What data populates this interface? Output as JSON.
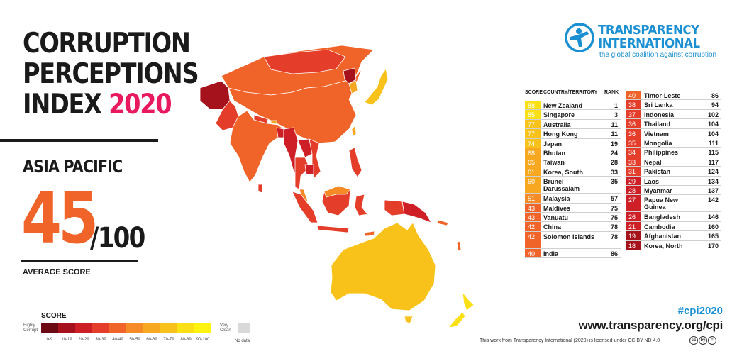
{
  "title": {
    "line1": "CORRUPTION",
    "line2": "PERCEPTIONS",
    "line3a": "INDEX",
    "year": "2020"
  },
  "region": "ASIA PACIFIC",
  "average": {
    "score": "45",
    "out_of": "/100",
    "label": "AVERAGE SCORE"
  },
  "legend": {
    "title": "SCORE",
    "low_end": "Highly Corrupt",
    "high_end": "Very Clean",
    "bins": [
      "0-9",
      "10-19",
      "20-29",
      "30-39",
      "40-49",
      "50-59",
      "60-69",
      "70-79",
      "80-89",
      "90-100"
    ],
    "colors": [
      "#6b0a14",
      "#a6121c",
      "#cf1f26",
      "#e43e2b",
      "#f0642a",
      "#f58a26",
      "#f7a820",
      "#f8c21b",
      "#fbe016",
      "#fff30f"
    ],
    "no_data": "No data",
    "no_data_color": "#d9d9d9"
  },
  "logo": {
    "name_line1": "TRANSPARENCY",
    "name_line2": "INTERNATIONAL",
    "tagline": "the global coalition against corruption",
    "color": "#1a8fd1"
  },
  "footer": {
    "hashtag": "#cpi2020",
    "url": "www.transparency.org/cpi",
    "license": "This work from Transparency International (2020) is licensed under CC BY-ND 4.0",
    "cc_icons": [
      "cc",
      "by",
      "="
    ]
  },
  "chart_data": {
    "type": "table",
    "title": "CORRUPTION PERCEPTIONS INDEX 2020",
    "columns": [
      "SCORE",
      "COUNTRY/TERRITORY",
      "RANK"
    ],
    "rows": [
      {
        "score": 88,
        "country": "New Zealand",
        "rank": 1
      },
      {
        "score": 85,
        "country": "Singapore",
        "rank": 3
      },
      {
        "score": 77,
        "country": "Australia",
        "rank": 11
      },
      {
        "score": 77,
        "country": "Hong Kong",
        "rank": 11
      },
      {
        "score": 74,
        "country": "Japan",
        "rank": 19
      },
      {
        "score": 68,
        "country": "Bhutan",
        "rank": 24
      },
      {
        "score": 65,
        "country": "Taiwan",
        "rank": 28
      },
      {
        "score": 61,
        "country": "Korea, South",
        "rank": 33
      },
      {
        "score": 60,
        "country": "Brunei Darussalam",
        "rank": 35
      },
      {
        "score": 51,
        "country": "Malaysia",
        "rank": 57
      },
      {
        "score": 43,
        "country": "Maldives",
        "rank": 75
      },
      {
        "score": 43,
        "country": "Vanuatu",
        "rank": 75
      },
      {
        "score": 42,
        "country": "China",
        "rank": 78
      },
      {
        "score": 42,
        "country": "Solomon Islands",
        "rank": 78
      },
      {
        "score": 40,
        "country": "India",
        "rank": 86
      },
      {
        "score": 40,
        "country": "Timor-Leste",
        "rank": 86
      },
      {
        "score": 38,
        "country": "Sri Lanka",
        "rank": 94
      },
      {
        "score": 37,
        "country": "Indonesia",
        "rank": 102
      },
      {
        "score": 36,
        "country": "Thailand",
        "rank": 104
      },
      {
        "score": 36,
        "country": "Vietnam",
        "rank": 104
      },
      {
        "score": 35,
        "country": "Mongolia",
        "rank": 111
      },
      {
        "score": 34,
        "country": "Philippines",
        "rank": 115
      },
      {
        "score": 33,
        "country": "Nepal",
        "rank": 117
      },
      {
        "score": 31,
        "country": "Pakistan",
        "rank": 124
      },
      {
        "score": 29,
        "country": "Laos",
        "rank": 134
      },
      {
        "score": 28,
        "country": "Myanmar",
        "rank": 137
      },
      {
        "score": 27,
        "country": "Papua New Guinea",
        "rank": 142
      },
      {
        "score": 26,
        "country": "Bangladesh",
        "rank": 146
      },
      {
        "score": 21,
        "country": "Cambodia",
        "rank": 160
      },
      {
        "score": 19,
        "country": "Afghanistan",
        "rank": 165
      },
      {
        "score": 18,
        "country": "Korea, North",
        "rank": 170
      }
    ]
  }
}
